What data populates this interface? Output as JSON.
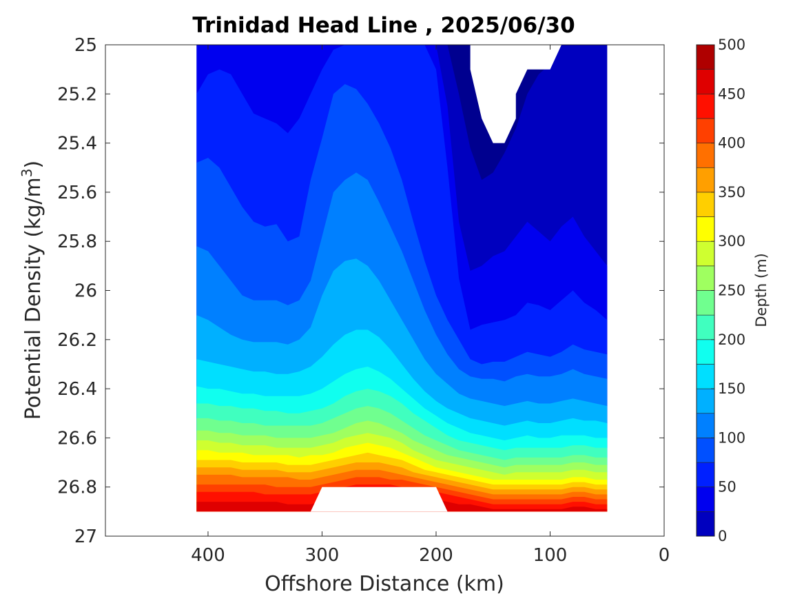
{
  "chart_data": {
    "type": "contourf",
    "title": "Trinidad Head Line , 2025/06/30",
    "xlabel": "Offshore Distance (km)",
    "ylabel_text": "Potential Density (kg/m",
    "ylabel_sup": "3",
    "ylabel_close": ")",
    "xlim": [
      490,
      0
    ],
    "ylim": [
      27,
      25
    ],
    "x_reversed": true,
    "y_reversed": true,
    "xticks": [
      "400",
      "300",
      "200",
      "100",
      "0"
    ],
    "xtick_values": [
      400,
      300,
      200,
      100,
      0
    ],
    "yticks": [
      "25",
      "25.2",
      "25.4",
      "25.6",
      "25.8",
      "26",
      "26.2",
      "26.4",
      "26.6",
      "26.8",
      "27"
    ],
    "ytick_values": [
      25,
      25.2,
      25.4,
      25.6,
      25.8,
      26,
      26.2,
      26.4,
      26.6,
      26.8,
      27
    ],
    "colorbar": {
      "label": "Depth (m)",
      "ticks": [
        "0",
        "50",
        "100",
        "150",
        "200",
        "250",
        "300",
        "350",
        "400",
        "450",
        "500"
      ],
      "tick_values": [
        0,
        50,
        100,
        150,
        200,
        250,
        300,
        350,
        400,
        450,
        500
      ],
      "levels": [
        0,
        25,
        50,
        75,
        100,
        125,
        150,
        175,
        200,
        225,
        250,
        275,
        300,
        325,
        350,
        375,
        400,
        425,
        450,
        475,
        500
      ],
      "colormap": "jet",
      "colors": [
        "#00008f",
        "#0000bf",
        "#0000ef",
        "#0020ff",
        "#0050ff",
        "#0080ff",
        "#00b0ff",
        "#00dfff",
        "#10ffef",
        "#40ffbf",
        "#70ff8f",
        "#9fff60",
        "#cfff30",
        "#ffff00",
        "#ffcf00",
        "#ff9f00",
        "#ff7000",
        "#ff4000",
        "#ff1000",
        "#df0000",
        "#af0000"
      ]
    },
    "contour_lines": {
      "x": [
        410,
        400,
        390,
        380,
        370,
        360,
        350,
        340,
        330,
        320,
        310,
        300,
        290,
        280,
        270,
        260,
        250,
        240,
        230,
        220,
        210,
        200,
        190,
        180,
        170,
        160,
        150,
        140,
        130,
        120,
        110,
        100,
        90,
        80,
        70,
        60,
        50
      ],
      "lines": [
        {
          "level": 25,
          "y": [
            25.0,
            25.0,
            25.0,
            25.0,
            25.0,
            25.0,
            25.0,
            25.0,
            25.0,
            25.0,
            25.0,
            25.0,
            25.0,
            25.0,
            25.0,
            25.0,
            25.0,
            25.0,
            25.0,
            25.0,
            25.0,
            25.0,
            25.0,
            25.2,
            25.42,
            25.55,
            25.52,
            25.44,
            25.34,
            25.2,
            25.12,
            25.08,
            25.0,
            25.0,
            25.0,
            25.0,
            25.0
          ]
        },
        {
          "level": 50,
          "y": [
            25.0,
            25.0,
            25.0,
            25.0,
            25.0,
            25.0,
            25.0,
            25.0,
            25.0,
            25.0,
            25.0,
            25.0,
            25.0,
            25.0,
            25.0,
            25.0,
            25.0,
            25.0,
            25.0,
            25.0,
            25.0,
            25.0,
            25.25,
            25.72,
            25.92,
            25.9,
            25.86,
            25.84,
            25.78,
            25.72,
            25.76,
            25.8,
            25.74,
            25.7,
            25.78,
            25.84,
            25.9
          ]
        },
        {
          "level": 75,
          "y": [
            25.2,
            25.12,
            25.1,
            25.12,
            25.2,
            25.28,
            25.3,
            25.32,
            25.36,
            25.3,
            25.2,
            25.1,
            25.02,
            25.0,
            25.0,
            25.0,
            25.0,
            25.0,
            25.0,
            25.0,
            25.0,
            25.1,
            25.5,
            25.95,
            26.16,
            26.14,
            26.13,
            26.12,
            26.1,
            26.05,
            26.06,
            26.08,
            26.04,
            26.0,
            26.05,
            26.08,
            26.12
          ]
        },
        {
          "level": 100,
          "y": [
            25.48,
            25.46,
            25.5,
            25.58,
            25.66,
            25.72,
            25.74,
            25.73,
            25.8,
            25.78,
            25.55,
            25.38,
            25.2,
            25.16,
            25.18,
            25.24,
            25.32,
            25.42,
            25.55,
            25.72,
            25.88,
            26.02,
            26.12,
            26.2,
            26.28,
            26.3,
            26.29,
            26.29,
            26.27,
            26.25,
            26.26,
            26.27,
            26.25,
            26.22,
            26.24,
            26.25,
            26.26
          ]
        },
        {
          "level": 125,
          "y": [
            25.82,
            25.84,
            25.9,
            25.96,
            26.02,
            26.04,
            26.04,
            26.04,
            26.06,
            26.04,
            25.96,
            25.78,
            25.6,
            25.55,
            25.52,
            25.55,
            25.64,
            25.74,
            25.84,
            25.96,
            26.08,
            26.18,
            26.26,
            26.32,
            26.35,
            26.36,
            26.36,
            26.37,
            26.35,
            26.34,
            26.35,
            26.35,
            26.34,
            26.32,
            26.34,
            26.35,
            26.36
          ]
        },
        {
          "level": 150,
          "y": [
            26.1,
            26.12,
            26.15,
            26.18,
            26.2,
            26.21,
            26.21,
            26.21,
            26.22,
            26.2,
            26.15,
            26.02,
            25.92,
            25.88,
            25.87,
            25.9,
            25.96,
            26.04,
            26.12,
            26.2,
            26.28,
            26.34,
            26.38,
            26.42,
            26.44,
            26.45,
            26.46,
            26.47,
            26.46,
            26.45,
            26.46,
            26.46,
            26.45,
            26.44,
            26.45,
            26.46,
            26.47
          ]
        },
        {
          "level": 175,
          "y": [
            26.28,
            26.29,
            26.3,
            26.31,
            26.32,
            26.33,
            26.33,
            26.34,
            26.34,
            26.33,
            26.31,
            26.27,
            26.22,
            26.18,
            26.16,
            26.16,
            26.19,
            26.24,
            26.3,
            26.36,
            26.41,
            26.45,
            26.48,
            26.5,
            26.52,
            26.53,
            26.54,
            26.55,
            26.54,
            26.53,
            26.54,
            26.54,
            26.53,
            26.52,
            26.53,
            26.53,
            26.54
          ]
        },
        {
          "level": 200,
          "y": [
            26.39,
            26.4,
            26.4,
            26.41,
            26.42,
            26.42,
            26.43,
            26.43,
            26.43,
            26.43,
            26.42,
            26.4,
            26.37,
            26.34,
            26.32,
            26.31,
            26.33,
            26.36,
            26.4,
            26.44,
            26.48,
            26.51,
            26.54,
            26.56,
            26.58,
            26.59,
            26.6,
            26.61,
            26.6,
            26.59,
            26.6,
            26.6,
            26.59,
            26.59,
            26.59,
            26.6,
            26.6
          ]
        },
        {
          "level": 225,
          "y": [
            26.46,
            26.46,
            26.47,
            26.47,
            26.48,
            26.48,
            26.49,
            26.49,
            26.5,
            26.5,
            26.49,
            26.48,
            26.46,
            26.43,
            26.41,
            26.4,
            26.41,
            26.43,
            26.46,
            26.5,
            26.53,
            26.56,
            26.59,
            26.61,
            26.62,
            26.63,
            26.64,
            26.65,
            26.64,
            26.64,
            26.64,
            26.64,
            26.64,
            26.63,
            26.63,
            26.64,
            26.64
          ]
        },
        {
          "level": 250,
          "y": [
            26.52,
            26.52,
            26.53,
            26.53,
            26.54,
            26.54,
            26.55,
            26.55,
            26.55,
            26.55,
            26.55,
            26.54,
            26.52,
            26.5,
            26.48,
            26.47,
            26.48,
            26.5,
            26.53,
            26.56,
            26.59,
            26.61,
            26.63,
            26.65,
            26.66,
            26.67,
            26.68,
            26.69,
            26.68,
            26.68,
            26.68,
            26.68,
            26.68,
            26.67,
            26.67,
            26.68,
            26.68
          ]
        },
        {
          "level": 275,
          "y": [
            26.57,
            26.57,
            26.58,
            26.58,
            26.59,
            26.59,
            26.59,
            26.6,
            26.6,
            26.6,
            26.6,
            26.59,
            26.58,
            26.56,
            26.54,
            26.53,
            26.54,
            26.56,
            26.58,
            26.61,
            26.63,
            26.65,
            26.67,
            26.68,
            26.69,
            26.7,
            26.71,
            26.72,
            26.71,
            26.71,
            26.71,
            26.71,
            26.71,
            26.7,
            26.7,
            26.71,
            26.71
          ]
        },
        {
          "level": 300,
          "y": [
            26.61,
            26.61,
            26.62,
            26.62,
            26.63,
            26.63,
            26.63,
            26.64,
            26.64,
            26.64,
            26.64,
            26.63,
            26.62,
            26.6,
            26.59,
            26.58,
            26.59,
            26.6,
            26.62,
            26.65,
            26.67,
            26.69,
            26.7,
            26.71,
            26.72,
            26.73,
            26.74,
            26.75,
            26.74,
            26.74,
            26.74,
            26.74,
            26.74,
            26.73,
            26.73,
            26.74,
            26.74
          ]
        },
        {
          "level": 325,
          "y": [
            26.65,
            26.65,
            26.66,
            26.66,
            26.66,
            26.67,
            26.67,
            26.67,
            26.67,
            26.68,
            26.67,
            26.67,
            26.66,
            26.64,
            26.63,
            26.62,
            26.63,
            26.64,
            26.66,
            26.68,
            26.7,
            26.72,
            26.73,
            26.74,
            26.75,
            26.76,
            26.77,
            26.77,
            26.77,
            26.77,
            26.77,
            26.77,
            26.77,
            26.76,
            26.76,
            26.77,
            26.77
          ]
        },
        {
          "level": 350,
          "y": [
            26.69,
            26.69,
            26.69,
            26.69,
            26.7,
            26.7,
            26.7,
            26.7,
            26.71,
            26.71,
            26.71,
            26.7,
            26.69,
            26.68,
            26.67,
            26.66,
            26.67,
            26.68,
            26.69,
            26.71,
            26.73,
            26.74,
            26.75,
            26.76,
            26.77,
            26.78,
            26.79,
            26.79,
            26.79,
            26.79,
            26.79,
            26.79,
            26.79,
            26.78,
            26.78,
            26.79,
            26.79
          ]
        },
        {
          "level": 375,
          "y": [
            26.72,
            26.72,
            26.72,
            26.72,
            26.73,
            26.73,
            26.73,
            26.73,
            26.74,
            26.74,
            26.74,
            26.73,
            26.72,
            26.71,
            26.7,
            26.7,
            26.7,
            26.71,
            26.72,
            26.74,
            26.75,
            26.76,
            26.77,
            26.78,
            26.79,
            26.8,
            26.81,
            26.81,
            26.81,
            26.81,
            26.81,
            26.81,
            26.81,
            26.8,
            26.8,
            26.81,
            26.81
          ]
        },
        {
          "level": 400,
          "y": [
            26.75,
            26.75,
            26.75,
            26.75,
            26.76,
            26.76,
            26.76,
            26.76,
            26.76,
            26.77,
            26.77,
            26.76,
            26.75,
            26.74,
            26.73,
            26.73,
            26.73,
            26.74,
            26.75,
            26.76,
            26.77,
            26.78,
            26.79,
            26.8,
            26.81,
            26.82,
            26.83,
            26.83,
            26.83,
            26.83,
            26.83,
            26.83,
            26.83,
            26.82,
            26.82,
            26.83,
            26.83
          ]
        },
        {
          "level": 425,
          "y": [
            26.79,
            26.79,
            26.79,
            26.79,
            26.79,
            26.79,
            26.79,
            26.8,
            26.8,
            26.8,
            26.8,
            26.79,
            26.78,
            26.77,
            26.76,
            26.76,
            26.76,
            26.77,
            26.77,
            26.78,
            26.79,
            26.8,
            26.81,
            26.82,
            26.83,
            26.84,
            26.85,
            26.85,
            26.85,
            26.85,
            26.85,
            26.85,
            26.85,
            26.84,
            26.84,
            26.85,
            26.85
          ]
        },
        {
          "level": 450,
          "y": [
            26.82,
            26.82,
            26.82,
            26.82,
            26.82,
            26.82,
            26.83,
            26.83,
            26.83,
            26.83,
            26.83,
            26.82,
            26.81,
            26.8,
            26.79,
            26.79,
            26.79,
            26.79,
            26.8,
            26.8,
            26.81,
            26.82,
            26.83,
            26.84,
            26.85,
            26.86,
            26.87,
            26.87,
            26.87,
            26.87,
            26.87,
            26.87,
            26.87,
            26.86,
            26.86,
            26.87,
            26.87
          ]
        },
        {
          "level": 475,
          "y": [
            26.86,
            26.86,
            26.86,
            26.86,
            26.86,
            26.86,
            26.86,
            26.86,
            26.87,
            26.87,
            26.87,
            26.86,
            26.85,
            26.84,
            26.83,
            26.83,
            26.83,
            26.83,
            26.83,
            26.84,
            26.84,
            26.85,
            26.86,
            26.87,
            26.87,
            26.88,
            26.89,
            26.89,
            26.89,
            26.89,
            26.89,
            26.89,
            26.89,
            26.88,
            26.88,
            26.89,
            26.89
          ]
        }
      ]
    },
    "data_mask": {
      "section_x": [
        410,
        50
      ],
      "section_y": [
        25,
        26.9
      ],
      "top_blank": [
        [
          170,
          25.0
        ],
        [
          170,
          25.1
        ],
        [
          160,
          25.3
        ],
        [
          150,
          25.4
        ],
        [
          140,
          25.4
        ],
        [
          130,
          25.3
        ],
        [
          130,
          25.2
        ],
        [
          120,
          25.1
        ],
        [
          100,
          25.1
        ],
        [
          90,
          25.0
        ]
      ],
      "bottom_blank": [
        [
          310,
          26.9
        ],
        [
          300,
          26.8
        ],
        [
          200,
          26.8
        ],
        [
          190,
          26.9
        ]
      ]
    }
  }
}
